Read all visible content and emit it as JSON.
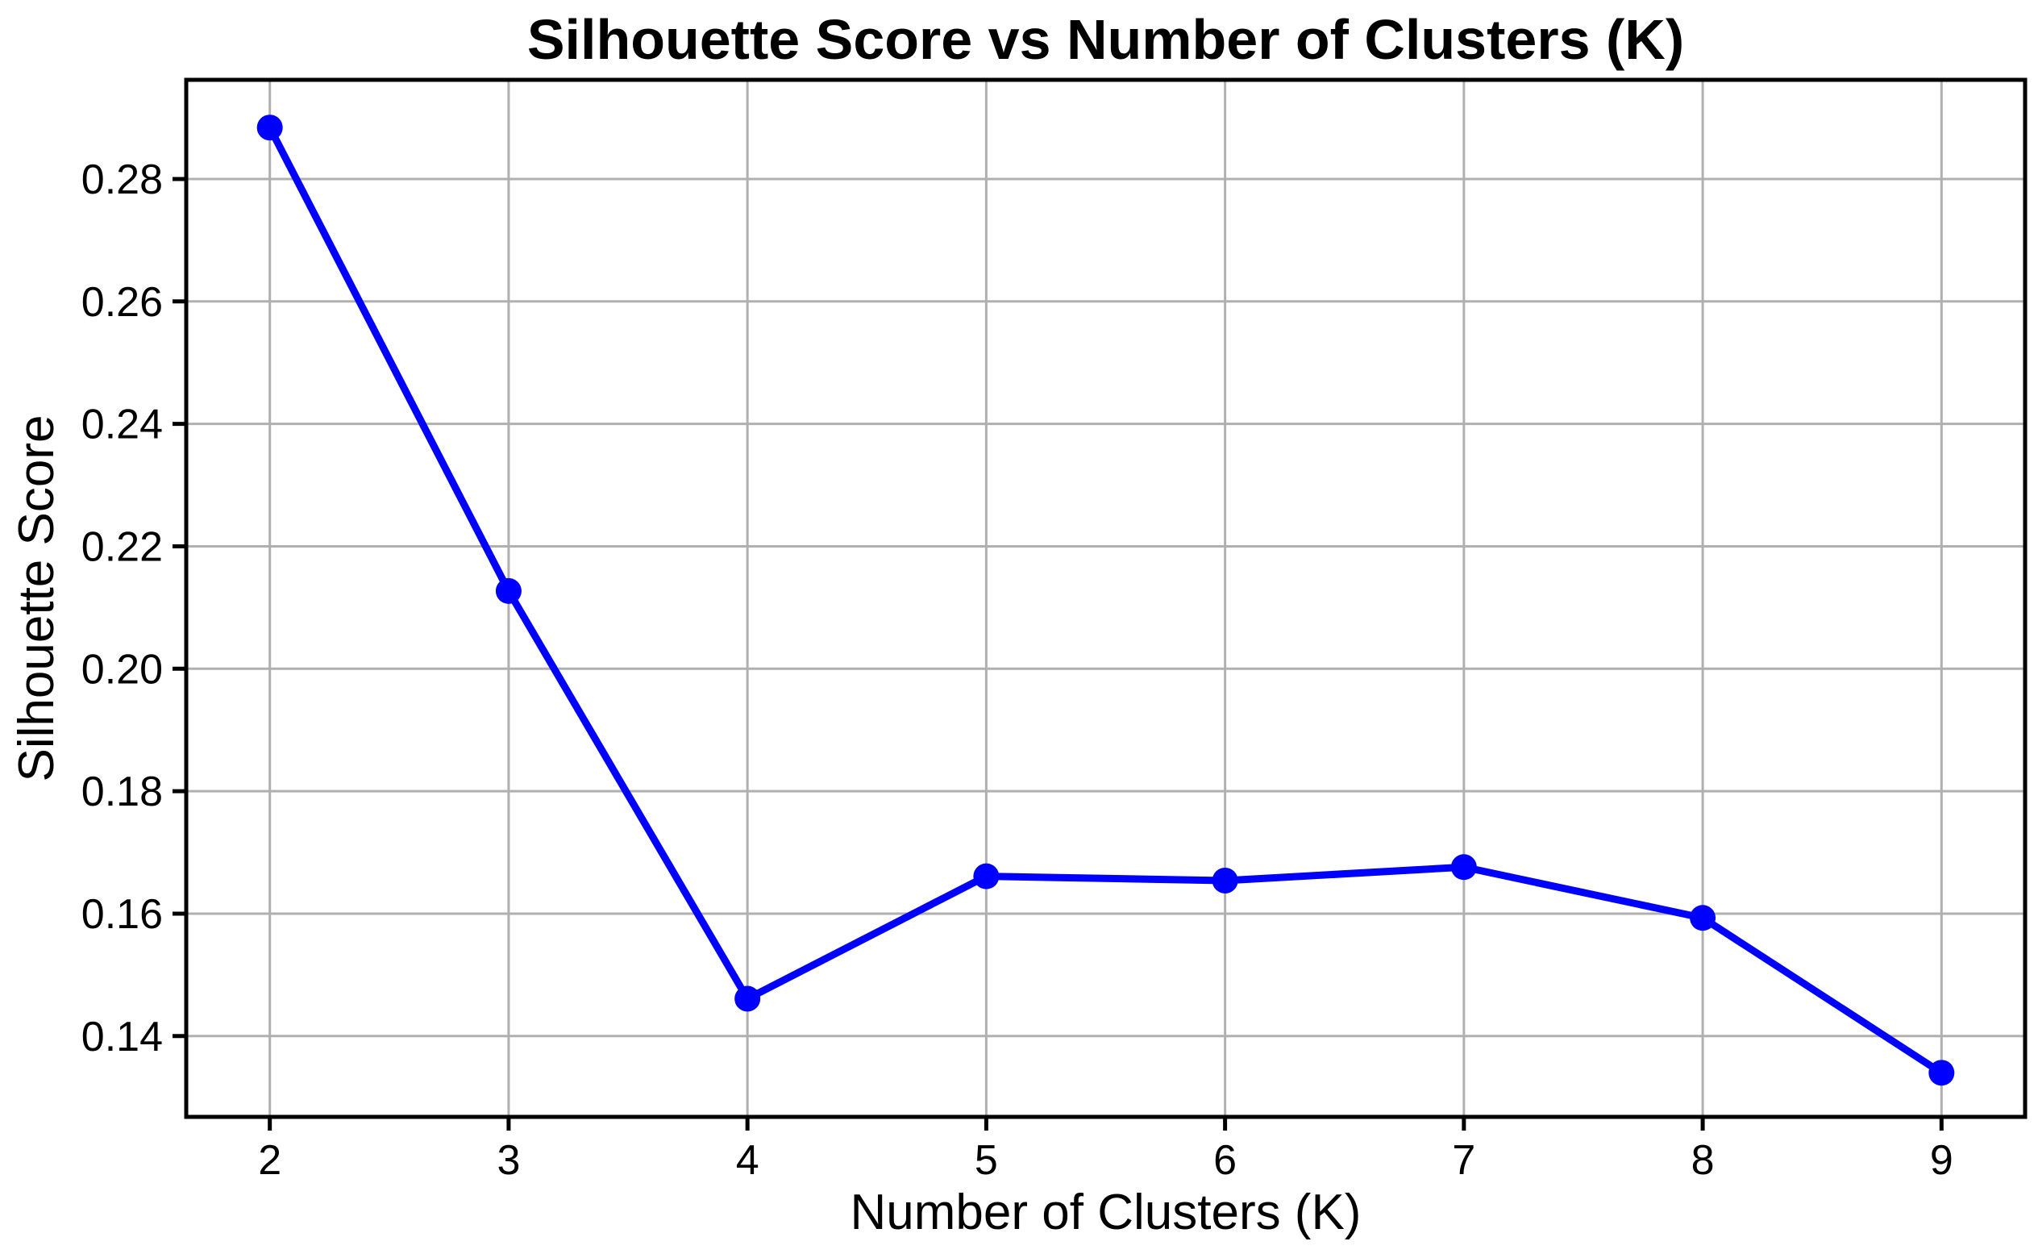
{
  "figure": {
    "background": "#ffffff"
  },
  "chart_data": {
    "type": "line",
    "title": "Silhouette Score vs Number of Clusters (K)",
    "xlabel": "Number of Clusters (K)",
    "ylabel": "Silhouette Score",
    "x": [
      2,
      3,
      4,
      5,
      6,
      7,
      8,
      9
    ],
    "values": [
      0.2884,
      0.2127,
      0.1461,
      0.1661,
      0.1654,
      0.1676,
      0.1593,
      0.134
    ],
    "xticks": [
      2,
      3,
      4,
      5,
      6,
      7,
      8,
      9
    ],
    "xtick_labels": [
      "2",
      "3",
      "4",
      "5",
      "6",
      "7",
      "8",
      "9"
    ],
    "yticks": [
      0.14,
      0.16,
      0.18,
      0.2,
      0.22,
      0.24,
      0.26,
      0.28
    ],
    "ytick_labels": [
      "0.14",
      "0.16",
      "0.18",
      "0.20",
      "0.22",
      "0.24",
      "0.26",
      "0.28"
    ],
    "xlim": [
      1.65,
      9.35
    ],
    "ylim": [
      0.1268,
      0.2962
    ],
    "grid": true,
    "legend": false,
    "line_style": "solid",
    "marker": "circle",
    "line_color": "#0000ff",
    "marker_color": "#0000ff",
    "grid_color": "#b0b0b0",
    "axis_color": "#000000",
    "tick_label_color": "#000000"
  }
}
